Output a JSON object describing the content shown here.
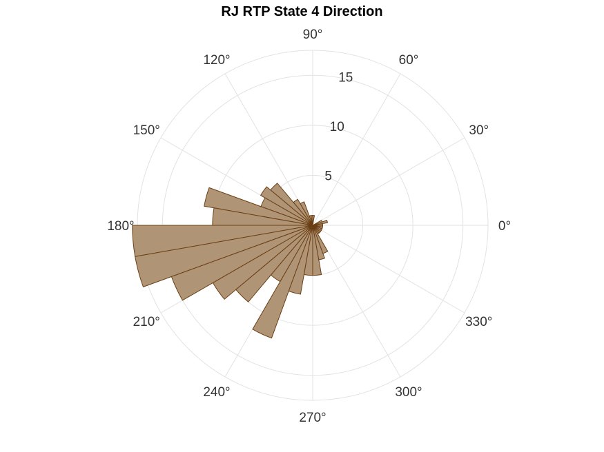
{
  "chart_data": {
    "type": "polar_histogram",
    "title": "RJ  RTP State 4 Direction",
    "r_ticks": [
      5,
      10,
      15
    ],
    "r_max": 17.5,
    "theta_tick_labels": [
      "0°",
      "30°",
      "60°",
      "90°",
      "120°",
      "150°",
      "180°",
      "210°",
      "240°",
      "270°",
      "300°",
      "330°"
    ],
    "bin_width_deg": 10,
    "bins": [
      {
        "start": 0,
        "end": 10,
        "value": 1
      },
      {
        "start": 10,
        "end": 20,
        "value": 1.5
      },
      {
        "start": 20,
        "end": 30,
        "value": 1
      },
      {
        "start": 80,
        "end": 90,
        "value": 1
      },
      {
        "start": 90,
        "end": 100,
        "value": 1
      },
      {
        "start": 100,
        "end": 110,
        "value": 1
      },
      {
        "start": 110,
        "end": 120,
        "value": 2.5
      },
      {
        "start": 120,
        "end": 130,
        "value": 3
      },
      {
        "start": 130,
        "end": 140,
        "value": 5.5
      },
      {
        "start": 140,
        "end": 150,
        "value": 6
      },
      {
        "start": 150,
        "end": 160,
        "value": 5.5
      },
      {
        "start": 160,
        "end": 170,
        "value": 11
      },
      {
        "start": 170,
        "end": 180,
        "value": 10
      },
      {
        "start": 180,
        "end": 190,
        "value": 18
      },
      {
        "start": 190,
        "end": 200,
        "value": 18
      },
      {
        "start": 200,
        "end": 210,
        "value": 15
      },
      {
        "start": 210,
        "end": 220,
        "value": 11.5
      },
      {
        "start": 220,
        "end": 230,
        "value": 10
      },
      {
        "start": 230,
        "end": 240,
        "value": 6.5
      },
      {
        "start": 240,
        "end": 250,
        "value": 12
      },
      {
        "start": 250,
        "end": 260,
        "value": 7
      },
      {
        "start": 260,
        "end": 270,
        "value": 5
      },
      {
        "start": 270,
        "end": 280,
        "value": 5
      },
      {
        "start": 280,
        "end": 290,
        "value": 3.5
      },
      {
        "start": 290,
        "end": 300,
        "value": 3
      },
      {
        "start": 300,
        "end": 310,
        "value": 1
      },
      {
        "start": 310,
        "end": 320,
        "value": 1
      },
      {
        "start": 320,
        "end": 330,
        "value": 1
      },
      {
        "start": 330,
        "end": 340,
        "value": 1
      },
      {
        "start": 340,
        "end": 350,
        "value": 1
      },
      {
        "start": 350,
        "end": 360,
        "value": 1
      }
    ],
    "colors": {
      "bar_fill": "#b09476",
      "bar_edge": "#6b3f14",
      "grid": "#e2e2e2",
      "tick_text": "#333333"
    }
  }
}
